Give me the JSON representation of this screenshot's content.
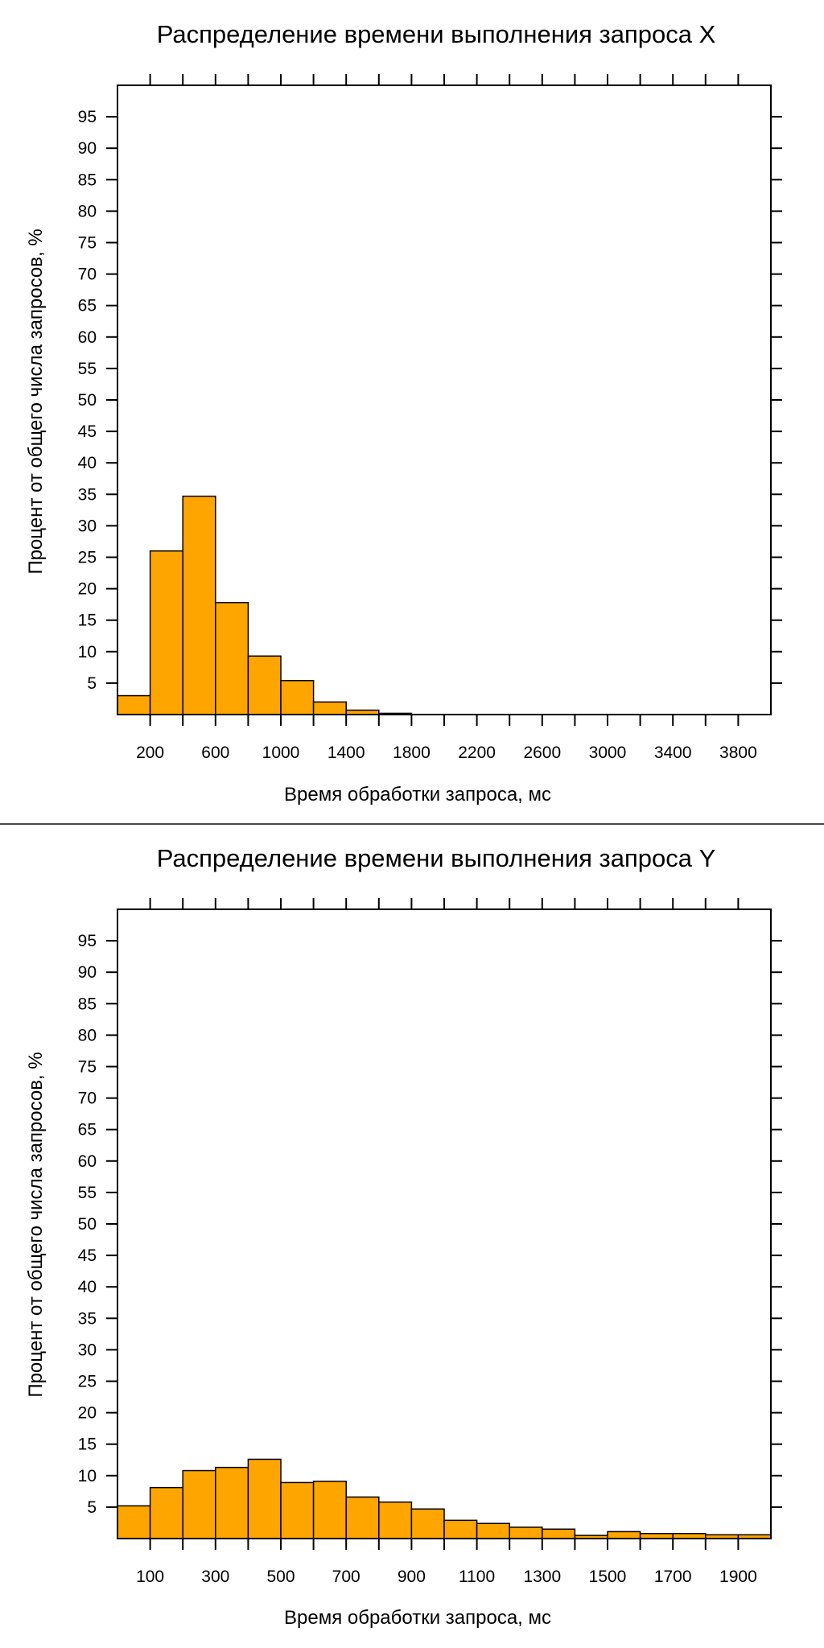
{
  "chart_data": [
    {
      "type": "bar",
      "title": "Распределение времени выполнения запроса X",
      "xlabel": "Время обработки запроса, мс",
      "ylabel": "Процент от общего числа запросов, %",
      "bin_width": 200,
      "xlim": [
        0,
        4000
      ],
      "ylim": [
        0,
        100
      ],
      "x_tick_values": [
        200,
        600,
        1000,
        1400,
        1800,
        2200,
        2600,
        3000,
        3400,
        3800
      ],
      "x_tick_labels": [
        "200",
        "600",
        "1000",
        "1400",
        "1800",
        "2200",
        "2600",
        "3000",
        "3400",
        "3800"
      ],
      "y_tick_values": [
        5,
        10,
        15,
        20,
        25,
        30,
        35,
        40,
        45,
        50,
        55,
        60,
        65,
        70,
        75,
        80,
        85,
        90,
        95
      ],
      "y_tick_labels": [
        "5",
        "10",
        "15",
        "20",
        "25",
        "30",
        "35",
        "40",
        "45",
        "50",
        "55",
        "60",
        "65",
        "70",
        "75",
        "80",
        "85",
        "90",
        "95"
      ],
      "bins_start": [
        0,
        200,
        400,
        600,
        800,
        1000,
        1200,
        1400,
        1600
      ],
      "values": [
        3,
        26,
        34.7,
        17.8,
        9.3,
        5.4,
        2,
        0.7,
        0.2
      ],
      "grid": false,
      "color": "#FFA500"
    },
    {
      "type": "bar",
      "title": "Распределение времени выполнения запроса Y",
      "xlabel": "Время обработки запроса, мс",
      "ylabel": "Процент от общего числа запросов, %",
      "bin_width": 100,
      "xlim": [
        0,
        2000
      ],
      "ylim": [
        0,
        100
      ],
      "x_tick_values": [
        100,
        300,
        500,
        700,
        900,
        1100,
        1300,
        1500,
        1700,
        1900
      ],
      "x_tick_labels": [
        "100",
        "300",
        "500",
        "700",
        "900",
        "1100",
        "1300",
        "1500",
        "1700",
        "1900"
      ],
      "y_tick_values": [
        5,
        10,
        15,
        20,
        25,
        30,
        35,
        40,
        45,
        50,
        55,
        60,
        65,
        70,
        75,
        80,
        85,
        90,
        95
      ],
      "y_tick_labels": [
        "5",
        "10",
        "15",
        "20",
        "25",
        "30",
        "35",
        "40",
        "45",
        "50",
        "55",
        "60",
        "65",
        "70",
        "75",
        "80",
        "85",
        "90",
        "95"
      ],
      "bins_start": [
        0,
        100,
        200,
        300,
        400,
        500,
        600,
        700,
        800,
        900,
        1000,
        1100,
        1200,
        1300,
        1400,
        1500,
        1600,
        1700,
        1800,
        1900
      ],
      "values": [
        5.2,
        8.1,
        10.8,
        11.3,
        12.6,
        8.9,
        9.1,
        6.6,
        5.8,
        4.7,
        2.9,
        2.4,
        1.8,
        1.5,
        0.5,
        1.1,
        0.8,
        0.8,
        0.6,
        0.6
      ],
      "grid": false,
      "color": "#FFA500"
    }
  ]
}
